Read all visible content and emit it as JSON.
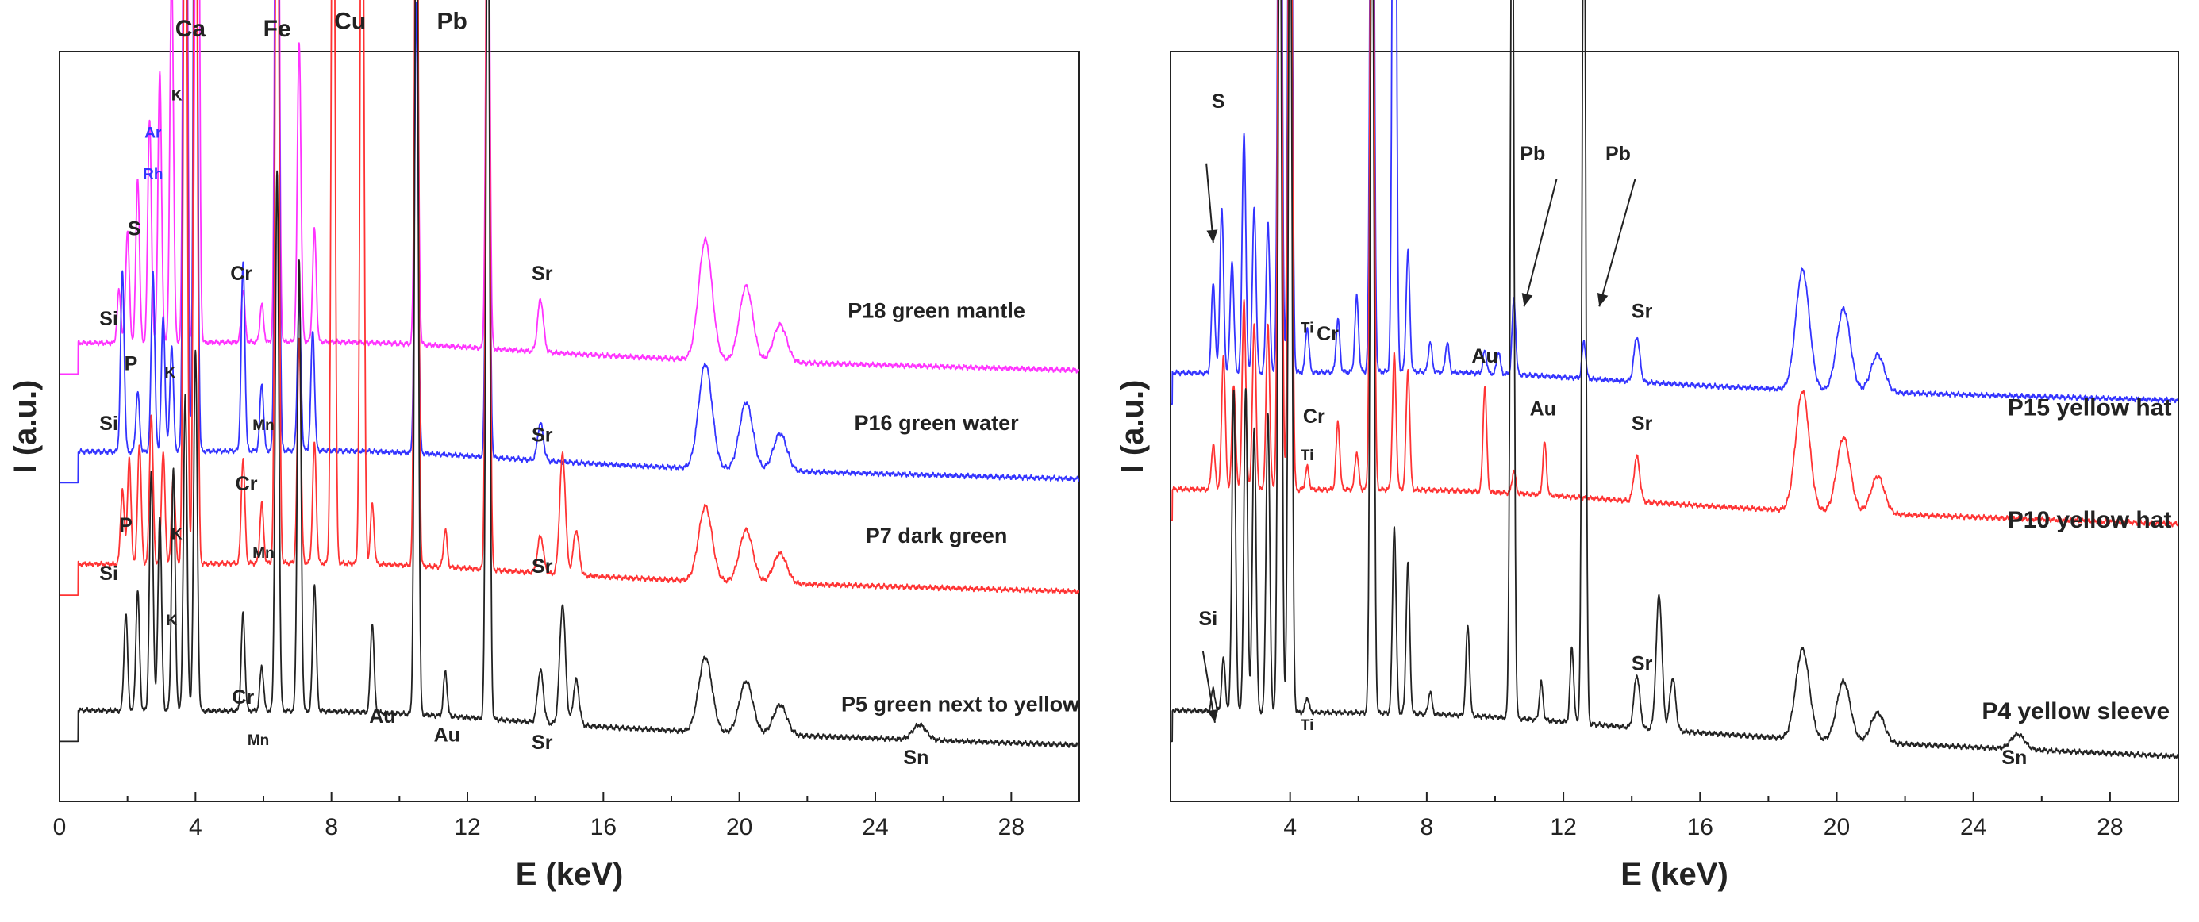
{
  "chart_data": [
    {
      "type": "line",
      "panel": "left",
      "xlabel": "E (keV)",
      "ylabel": "I (a.u.)",
      "xlim": [
        0,
        30
      ],
      "xticks": [
        0,
        4,
        8,
        12,
        16,
        20,
        24,
        28
      ],
      "series": [
        {
          "name": "P18 green mantle",
          "color": "#ff33ff",
          "baseline": 0.61,
          "tail": 0.575,
          "peaks": [
            [
              1.75,
              0.07
            ],
            [
              2.0,
              0.15
            ],
            [
              2.3,
              0.22
            ],
            [
              2.65,
              0.3
            ],
            [
              2.95,
              0.36
            ],
            [
              3.3,
              0.5
            ],
            [
              3.7,
              1.2
            ],
            [
              4.05,
              1.2
            ],
            [
              5.4,
              0.07
            ],
            [
              5.95,
              0.05
            ],
            [
              6.4,
              1.2
            ],
            [
              7.05,
              0.4
            ],
            [
              7.5,
              0.15
            ],
            [
              10.5,
              0.6
            ],
            [
              12.6,
              0.8
            ],
            [
              14.15,
              0.07
            ],
            [
              19.0,
              0.16
            ],
            [
              20.2,
              0.1
            ],
            [
              21.2,
              0.05
            ]
          ]
        },
        {
          "name": "P16 green water",
          "color": "#3333ff",
          "baseline": 0.465,
          "tail": 0.43,
          "peaks": [
            [
              1.85,
              0.24
            ],
            [
              2.3,
              0.08
            ],
            [
              2.75,
              0.24
            ],
            [
              3.05,
              0.18
            ],
            [
              3.3,
              0.14
            ],
            [
              3.7,
              1.2
            ],
            [
              4.0,
              1.2
            ],
            [
              5.4,
              0.25
            ],
            [
              5.95,
              0.09
            ],
            [
              6.4,
              1.2
            ],
            [
              7.05,
              0.2
            ],
            [
              7.45,
              0.16
            ],
            [
              10.5,
              0.6
            ],
            [
              12.6,
              0.8
            ],
            [
              14.15,
              0.05
            ],
            [
              19.0,
              0.14
            ],
            [
              20.2,
              0.09
            ],
            [
              21.2,
              0.05
            ]
          ]
        },
        {
          "name": "P7 dark green",
          "color": "#ff3333",
          "baseline": 0.315,
          "tail": 0.28,
          "peaks": [
            [
              1.85,
              0.1
            ],
            [
              2.05,
              0.14
            ],
            [
              2.35,
              0.16
            ],
            [
              2.7,
              0.2
            ],
            [
              3.05,
              0.15
            ],
            [
              3.35,
              0.12
            ],
            [
              3.7,
              1.2
            ],
            [
              4.0,
              1.2
            ],
            [
              5.4,
              0.14
            ],
            [
              5.95,
              0.08
            ],
            [
              6.4,
              1.2
            ],
            [
              7.05,
              0.3
            ],
            [
              7.5,
              0.16
            ],
            [
              8.05,
              1.2
            ],
            [
              8.9,
              1.2
            ],
            [
              9.2,
              0.08
            ],
            [
              10.5,
              1.2
            ],
            [
              11.35,
              0.05
            ],
            [
              12.6,
              1.2
            ],
            [
              14.15,
              0.05
            ],
            [
              14.8,
              0.16
            ],
            [
              15.2,
              0.06
            ],
            [
              19.0,
              0.1
            ],
            [
              20.2,
              0.07
            ],
            [
              21.2,
              0.04
            ]
          ]
        },
        {
          "name": "P5 green next to yellow",
          "color": "#222222",
          "baseline": 0.12,
          "tail": 0.075,
          "peaks": [
            [
              1.95,
              0.13
            ],
            [
              2.3,
              0.16
            ],
            [
              2.7,
              0.32
            ],
            [
              2.95,
              0.26
            ],
            [
              3.35,
              0.32
            ],
            [
              3.7,
              0.42
            ],
            [
              4.0,
              0.48
            ],
            [
              5.4,
              0.13
            ],
            [
              5.95,
              0.06
            ],
            [
              6.4,
              0.72
            ],
            [
              7.05,
              0.6
            ],
            [
              7.5,
              0.17
            ],
            [
              9.2,
              0.12
            ],
            [
              10.5,
              1.2
            ],
            [
              11.35,
              0.06
            ],
            [
              12.6,
              1.2
            ],
            [
              14.15,
              0.07
            ],
            [
              14.8,
              0.16
            ],
            [
              15.2,
              0.06
            ],
            [
              19.0,
              0.1
            ],
            [
              20.2,
              0.07
            ],
            [
              21.2,
              0.04
            ],
            [
              25.3,
              0.02
            ]
          ]
        }
      ],
      "annotations": [
        {
          "text": "Ca",
          "x": 3.85,
          "y": 1.02,
          "size": "large"
        },
        {
          "text": "Fe",
          "x": 6.4,
          "y": 1.02,
          "size": "large"
        },
        {
          "text": "Cu",
          "x": 8.55,
          "y": 1.03,
          "size": "large"
        },
        {
          "text": "Pb",
          "x": 11.55,
          "y": 1.03,
          "size": "large"
        },
        {
          "text": "K",
          "x": 3.45,
          "y": 0.935,
          "size": "small"
        },
        {
          "text": "Ar",
          "x": 2.75,
          "y": 0.885,
          "size": "small",
          "color": "#3333ff"
        },
        {
          "text": "Rh",
          "x": 2.75,
          "y": 0.83,
          "size": "small",
          "color": "#3333ff"
        },
        {
          "text": "S",
          "x": 2.2,
          "y": 0.755,
          "size": "medium"
        },
        {
          "text": "Si",
          "x": 1.45,
          "y": 0.635,
          "size": "medium"
        },
        {
          "text": "Cr",
          "x": 5.35,
          "y": 0.695,
          "size": "medium"
        },
        {
          "text": "Sr",
          "x": 14.2,
          "y": 0.695,
          "size": "medium"
        },
        {
          "text": "P",
          "x": 2.1,
          "y": 0.575,
          "size": "medium"
        },
        {
          "text": "K",
          "x": 3.25,
          "y": 0.565,
          "size": "small"
        },
        {
          "text": "Si",
          "x": 1.45,
          "y": 0.495,
          "size": "medium"
        },
        {
          "text": "Mn",
          "x": 6.0,
          "y": 0.495,
          "size": "small"
        },
        {
          "text": "Sr",
          "x": 14.2,
          "y": 0.48,
          "size": "medium"
        },
        {
          "text": "Cr",
          "x": 5.5,
          "y": 0.415,
          "size": "medium"
        },
        {
          "text": "P",
          "x": 1.95,
          "y": 0.36,
          "size": "medium"
        },
        {
          "text": "K",
          "x": 3.45,
          "y": 0.35,
          "size": "small"
        },
        {
          "text": "Mn",
          "x": 6.0,
          "y": 0.325,
          "size": "small"
        },
        {
          "text": "Si",
          "x": 1.45,
          "y": 0.295,
          "size": "medium"
        },
        {
          "text": "Sr",
          "x": 14.2,
          "y": 0.305,
          "size": "medium"
        },
        {
          "text": "K",
          "x": 3.3,
          "y": 0.235,
          "size": "small"
        },
        {
          "text": "Cr",
          "x": 5.4,
          "y": 0.13,
          "size": "medium"
        },
        {
          "text": "Mn",
          "x": 5.85,
          "y": 0.075,
          "size": "small"
        },
        {
          "text": "Au",
          "x": 9.5,
          "y": 0.105,
          "size": "medium"
        },
        {
          "text": "Au",
          "x": 11.4,
          "y": 0.08,
          "size": "medium"
        },
        {
          "text": "Sr",
          "x": 14.2,
          "y": 0.07,
          "size": "medium"
        },
        {
          "text": "Sn",
          "x": 25.2,
          "y": 0.05,
          "size": "medium"
        }
      ],
      "series_labels": [
        {
          "text": "P18 green mantle",
          "x": 25.8,
          "y": 0.645
        },
        {
          "text": "P16 green water",
          "x": 25.8,
          "y": 0.495
        },
        {
          "text": "P7 dark green",
          "x": 25.8,
          "y": 0.345
        },
        {
          "text": "P5 green next to yellow",
          "x": 26.5,
          "y": 0.12
        }
      ]
    },
    {
      "type": "line",
      "panel": "right",
      "xlabel": "E (keV)",
      "ylabel": "I (a.u.)",
      "xlim": [
        0.5,
        30
      ],
      "xticks": [
        4,
        8,
        12,
        16,
        20,
        24,
        28
      ],
      "series": [
        {
          "name": "P15 yellow hat",
          "color": "#3333ff",
          "baseline": 0.57,
          "tail": 0.535,
          "peaks": [
            [
              1.75,
              0.12
            ],
            [
              2.0,
              0.22
            ],
            [
              2.3,
              0.15
            ],
            [
              2.65,
              0.32
            ],
            [
              2.95,
              0.22
            ],
            [
              3.35,
              0.2
            ],
            [
              3.7,
              1.2
            ],
            [
              4.0,
              1.2
            ],
            [
              4.5,
              0.06
            ],
            [
              5.4,
              0.07
            ],
            [
              5.95,
              0.1
            ],
            [
              6.4,
              1.2
            ],
            [
              7.05,
              1.2
            ],
            [
              7.45,
              0.16
            ],
            [
              8.1,
              0.04
            ],
            [
              8.6,
              0.04
            ],
            [
              9.7,
              0.03
            ],
            [
              10.1,
              0.03
            ],
            [
              10.55,
              0.1
            ],
            [
              12.6,
              0.05
            ],
            [
              14.15,
              0.06
            ],
            [
              19.0,
              0.16
            ],
            [
              20.2,
              0.11
            ],
            [
              21.2,
              0.05
            ]
          ]
        },
        {
          "name": "P10 yellow hat",
          "color": "#ff3333",
          "baseline": 0.415,
          "tail": 0.37,
          "peaks": [
            [
              1.75,
              0.06
            ],
            [
              2.05,
              0.18
            ],
            [
              2.35,
              0.14
            ],
            [
              2.65,
              0.25
            ],
            [
              2.95,
              0.22
            ],
            [
              3.35,
              0.22
            ],
            [
              3.7,
              1.2
            ],
            [
              4.0,
              1.2
            ],
            [
              4.5,
              0.03
            ],
            [
              5.4,
              0.09
            ],
            [
              5.95,
              0.05
            ],
            [
              6.4,
              1.2
            ],
            [
              7.05,
              0.18
            ],
            [
              7.45,
              0.16
            ],
            [
              9.7,
              0.14
            ],
            [
              10.55,
              0.03
            ],
            [
              11.45,
              0.07
            ],
            [
              14.15,
              0.06
            ],
            [
              19.0,
              0.16
            ],
            [
              20.2,
              0.1
            ],
            [
              21.2,
              0.05
            ]
          ]
        },
        {
          "name": "P4 yellow sleeve",
          "color": "#222222",
          "baseline": 0.12,
          "tail": 0.06,
          "peaks": [
            [
              1.75,
              0.03
            ],
            [
              2.05,
              0.07
            ],
            [
              2.35,
              0.43
            ],
            [
              2.7,
              0.43
            ],
            [
              2.95,
              0.38
            ],
            [
              3.35,
              0.4
            ],
            [
              3.7,
              1.2
            ],
            [
              4.0,
              1.2
            ],
            [
              4.5,
              0.02
            ],
            [
              6.4,
              1.2
            ],
            [
              7.05,
              0.25
            ],
            [
              7.45,
              0.2
            ],
            [
              8.1,
              0.03
            ],
            [
              9.2,
              0.12
            ],
            [
              10.5,
              1.2
            ],
            [
              11.35,
              0.05
            ],
            [
              12.25,
              0.1
            ],
            [
              12.6,
              1.2
            ],
            [
              14.15,
              0.07
            ],
            [
              14.8,
              0.18
            ],
            [
              15.2,
              0.07
            ],
            [
              19.0,
              0.12
            ],
            [
              20.2,
              0.08
            ],
            [
              21.2,
              0.04
            ],
            [
              25.3,
              0.02
            ]
          ]
        }
      ],
      "annotations": [
        {
          "text": "S",
          "x": 1.9,
          "y": 0.925,
          "size": "medium"
        },
        {
          "text": "Pb",
          "x": 11.1,
          "y": 0.855,
          "size": "medium"
        },
        {
          "text": "Pb",
          "x": 13.6,
          "y": 0.855,
          "size": "medium"
        },
        {
          "text": "Ti",
          "x": 4.5,
          "y": 0.625,
          "size": "small"
        },
        {
          "text": "Cr",
          "x": 5.1,
          "y": 0.615,
          "size": "medium"
        },
        {
          "text": "Sr",
          "x": 14.3,
          "y": 0.645,
          "size": "medium"
        },
        {
          "text": "Au",
          "x": 9.7,
          "y": 0.585,
          "size": "medium"
        },
        {
          "text": "Cr",
          "x": 4.7,
          "y": 0.505,
          "size": "medium"
        },
        {
          "text": "Au",
          "x": 11.4,
          "y": 0.515,
          "size": "medium"
        },
        {
          "text": "Sr",
          "x": 14.3,
          "y": 0.495,
          "size": "medium"
        },
        {
          "text": "Ti",
          "x": 4.5,
          "y": 0.455,
          "size": "small"
        },
        {
          "text": "Si",
          "x": 1.6,
          "y": 0.235,
          "size": "medium"
        },
        {
          "text": "Sr",
          "x": 14.3,
          "y": 0.175,
          "size": "medium"
        },
        {
          "text": "Ti",
          "x": 4.5,
          "y": 0.095,
          "size": "small"
        },
        {
          "text": "Sn",
          "x": 25.2,
          "y": 0.05,
          "size": "medium"
        }
      ],
      "series_labels": [
        {
          "text": "P15 yellow hat",
          "x": 27.4,
          "y": 0.515
        },
        {
          "text": "P10 yellow hat",
          "x": 27.4,
          "y": 0.365
        },
        {
          "text": "P4 yellow sleeve",
          "x": 27.0,
          "y": 0.11
        }
      ],
      "arrows": [
        {
          "from": [
            1.55,
            0.85
          ],
          "to": [
            1.75,
            0.745
          ]
        },
        {
          "from": [
            11.8,
            0.83
          ],
          "to": [
            10.85,
            0.66
          ]
        },
        {
          "from": [
            14.1,
            0.83
          ],
          "to": [
            13.05,
            0.66
          ]
        },
        {
          "from": [
            1.45,
            0.2
          ],
          "to": [
            1.8,
            0.105
          ]
        }
      ]
    }
  ]
}
